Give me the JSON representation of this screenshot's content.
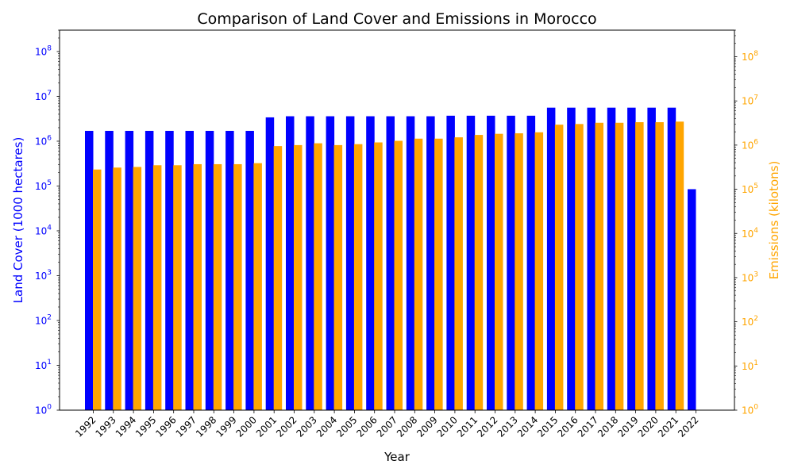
{
  "chart_data": {
    "type": "bar",
    "title": "Comparison of Land Cover and Emissions in Morocco",
    "xlabel": "Year",
    "categories": [
      "1992",
      "1993",
      "1994",
      "1995",
      "1996",
      "1997",
      "1998",
      "1999",
      "2000",
      "2001",
      "2002",
      "2003",
      "2004",
      "2005",
      "2006",
      "2007",
      "2008",
      "2009",
      "2010",
      "2011",
      "2012",
      "2013",
      "2014",
      "2015",
      "2016",
      "2017",
      "2018",
      "2019",
      "2020",
      "2021",
      "2022"
    ],
    "y_left": {
      "label": "Land Cover (1000 hectares)",
      "scale": "log",
      "lim": [
        1,
        300000000
      ],
      "color": "#0000ff",
      "ticks": [
        1,
        10,
        100,
        1000,
        10000,
        100000,
        1000000,
        10000000,
        100000000
      ],
      "tick_labels": [
        "10^0",
        "10^1",
        "10^2",
        "10^3",
        "10^4",
        "10^5",
        "10^6",
        "10^7",
        "10^8"
      ]
    },
    "y_right": {
      "label": "Emissions (kilotons)",
      "scale": "log",
      "lim": [
        1,
        400000000
      ],
      "color": "#ffa500",
      "ticks": [
        1,
        10,
        100,
        1000,
        10000,
        100000,
        1000000,
        10000000,
        100000000
      ],
      "tick_labels": [
        "10^0",
        "10^1",
        "10^2",
        "10^3",
        "10^4",
        "10^5",
        "10^6",
        "10^7",
        "10^8"
      ]
    },
    "series": [
      {
        "axis": "left",
        "color": "#0000ff",
        "values": [
          1700000,
          1700000,
          1700000,
          1700000,
          1700000,
          1700000,
          1700000,
          1700000,
          1700000,
          3400000,
          3600000,
          3600000,
          3600000,
          3600000,
          3600000,
          3600000,
          3600000,
          3600000,
          3700000,
          3700000,
          3700000,
          3700000,
          3700000,
          5600000,
          5600000,
          5600000,
          5600000,
          5600000,
          5600000,
          5600000,
          85000
        ]
      },
      {
        "axis": "right",
        "color": "#ffa500",
        "values": [
          280000,
          310000,
          320000,
          350000,
          350000,
          370000,
          370000,
          370000,
          390000,
          950000,
          1000000,
          1100000,
          1000000,
          1050000,
          1150000,
          1250000,
          1400000,
          1400000,
          1500000,
          1700000,
          1800000,
          1850000,
          1950000,
          2900000,
          3000000,
          3200000,
          3200000,
          3300000,
          3300000,
          3400000,
          null
        ]
      }
    ],
    "grid": false,
    "legend": "none"
  }
}
